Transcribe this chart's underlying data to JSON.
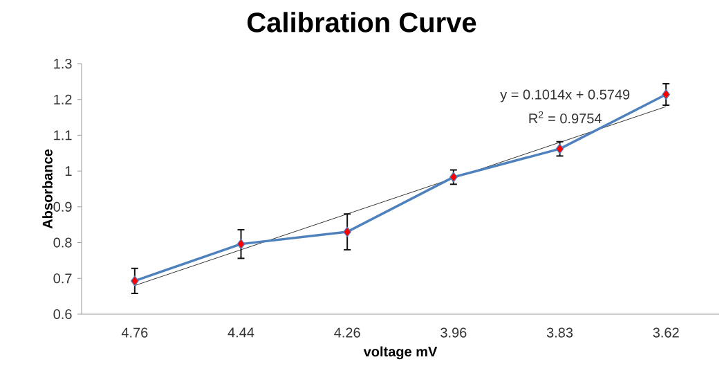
{
  "chart_data": {
    "type": "line",
    "title": "Calibration Curve",
    "xlabel": "voltage mV",
    "ylabel": "Absorbance",
    "categories": [
      "4.76",
      "4.44",
      "4.26",
      "3.96",
      "3.83",
      "3.62"
    ],
    "series": [
      {
        "color": "#4f81bd",
        "colors": [
          "#ff0000",
          "#ff0000",
          "#ff0000",
          "#ff0000",
          "#ff0000",
          "#ff0000"
        ],
        "marker": "diamond",
        "values": [
          0.693,
          0.796,
          0.83,
          0.983,
          1.062,
          1.214
        ],
        "errors": [
          0.035,
          0.04,
          0.05,
          0.02,
          0.02,
          0.03
        ]
      },
      {
        "color": "#000000",
        "marker": "none",
        "values": [
          0.68,
          0.78,
          0.88,
          0.98,
          1.08,
          1.18
        ]
      }
    ],
    "ylim": [
      0.6,
      1.3
    ],
    "yticks": [
      0.6,
      0.7,
      0.8,
      0.9,
      1,
      1.1,
      1.2,
      1.3
    ],
    "annotations": [
      "y = 0.1014x + 0.5749",
      "R$^{2}$ = 0.9754"
    ]
  }
}
